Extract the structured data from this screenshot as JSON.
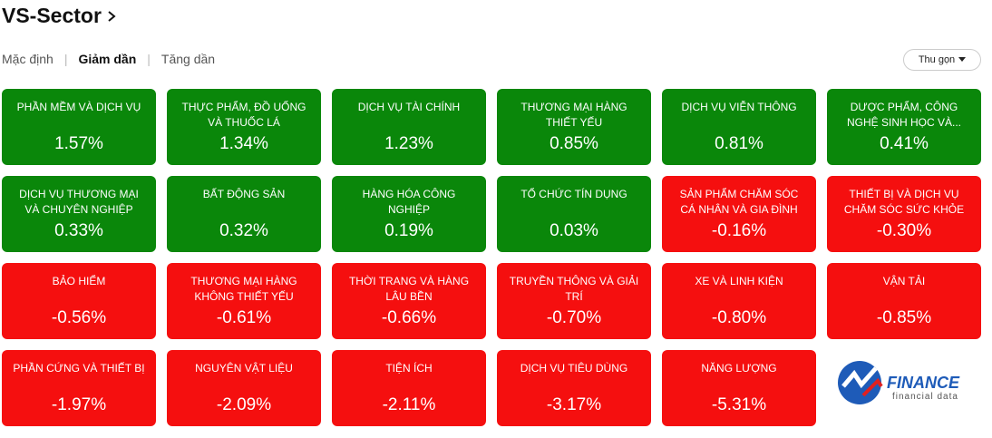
{
  "header": {
    "title": "VS-Sector"
  },
  "sort_tabs": [
    {
      "label": "Mặc định",
      "active": false
    },
    {
      "label": "Giảm dần",
      "active": true
    },
    {
      "label": "Tăng dần",
      "active": false
    }
  ],
  "collapse_button": {
    "label": "Thu gọn"
  },
  "tiles": [
    {
      "name": "PHẦN MỀM VÀ DỊCH VỤ",
      "change": "1.57%"
    },
    {
      "name": "THỰC PHẨM, ĐỒ UỐNG VÀ THUỐC LÁ",
      "change": "1.34%"
    },
    {
      "name": "DỊCH VỤ TÀI CHÍNH",
      "change": "1.23%"
    },
    {
      "name": "THƯƠNG MẠI HÀNG THIẾT YẾU",
      "change": "0.85%"
    },
    {
      "name": "DỊCH VỤ VIỄN THÔNG",
      "change": "0.81%"
    },
    {
      "name": "DƯỢC PHẨM, CÔNG NGHỆ SINH HỌC VÀ...",
      "change": "0.41%"
    },
    {
      "name": "DỊCH VỤ THƯƠNG MẠI VÀ CHUYÊN NGHIỆP",
      "change": "0.33%"
    },
    {
      "name": "BẤT ĐỘNG SẢN",
      "change": "0.32%"
    },
    {
      "name": "HÀNG HÓA CÔNG NGHIỆP",
      "change": "0.19%"
    },
    {
      "name": "TỔ CHỨC TÍN DỤNG",
      "change": "0.03%"
    },
    {
      "name": "SẢN PHẨM CHĂM SÓC CÁ NHÂN VÀ GIA ĐÌNH",
      "change": "-0.16%"
    },
    {
      "name": "THIẾT BỊ VÀ DỊCH VỤ CHĂM SÓC SỨC KHỎE",
      "change": "-0.30%"
    },
    {
      "name": "BẢO HIỂM",
      "change": "-0.56%"
    },
    {
      "name": "THƯƠNG MẠI HÀNG KHÔNG THIẾT YẾU",
      "change": "-0.61%"
    },
    {
      "name": "THỜI TRANG VÀ HÀNG LÂU BỀN",
      "change": "-0.66%"
    },
    {
      "name": "TRUYỀN THÔNG VÀ GIẢI TRÍ",
      "change": "-0.70%"
    },
    {
      "name": "XE VÀ LINH KIỆN",
      "change": "-0.80%"
    },
    {
      "name": "VẬN TẢI",
      "change": "-0.85%"
    },
    {
      "name": "PHẦN CỨNG VÀ THIẾT BỊ",
      "change": "-1.97%"
    },
    {
      "name": "NGUYÊN VẬT LIỆU",
      "change": "-2.09%"
    },
    {
      "name": "TIỆN ÍCH",
      "change": "-2.11%"
    },
    {
      "name": "DỊCH VỤ TIÊU DÙNG",
      "change": "-3.17%"
    },
    {
      "name": "NĂNG LƯỢNG",
      "change": "-5.31%"
    }
  ],
  "logo": {
    "name": "FINANCE",
    "tagline": "financial data"
  }
}
